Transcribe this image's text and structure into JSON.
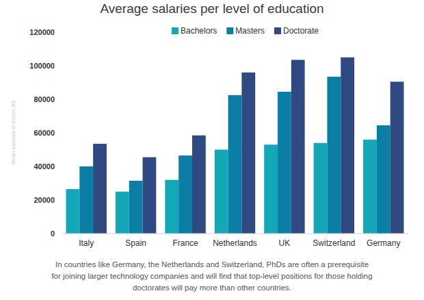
{
  "chart_data": {
    "type": "bar",
    "title": "Average salaries per level of education",
    "y_label": "Mean salaries in Euros (€)",
    "categories": [
      "Italy",
      "Spain",
      "France",
      "Netherlands",
      "UK",
      "Switzerland",
      "Germany"
    ],
    "series": [
      {
        "name": "Bachelors",
        "color": "#13a7b7",
        "values": [
          26500,
          25000,
          32000,
          50000,
          53000,
          54000,
          56000
        ]
      },
      {
        "name": "Masters",
        "color": "#0b7ea6",
        "values": [
          40000,
          31500,
          46500,
          82500,
          84500,
          93500,
          64500
        ]
      },
      {
        "name": "Doctorate",
        "color": "#2f4a80",
        "values": [
          53500,
          45500,
          58500,
          96000,
          103500,
          105000,
          90500
        ]
      }
    ],
    "ylim": [
      0,
      120000
    ],
    "yticks": [
      0,
      20000,
      40000,
      60000,
      80000,
      100000,
      120000
    ],
    "grid": false,
    "legend": "top",
    "data_labels": false,
    "annotations": [
      "In countries like Germany, the Netherlands and Switzerland, PhDs are often a prerequisite",
      "for joining larger technology companies and will find that top-level positions for those holding",
      "doctorates will pay more than other countries."
    ]
  }
}
